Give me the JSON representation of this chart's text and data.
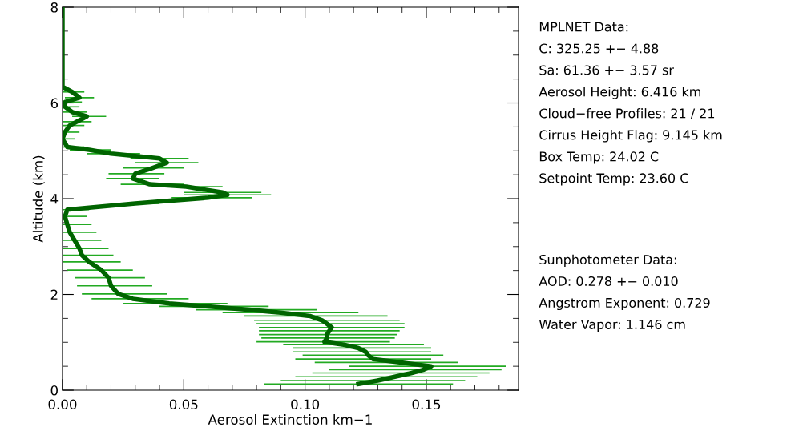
{
  "chart_data": {
    "type": "line",
    "xlabel": "Aerosol Extinction km−1",
    "ylabel": "Altitude (km)",
    "xlim": [
      0,
      0.188
    ],
    "xticks": [
      {
        "value": 0,
        "label": "0.00"
      },
      {
        "value": 0.05,
        "label": "0.05"
      },
      {
        "value": 0.1,
        "label": "0.10"
      },
      {
        "value": 0.15,
        "label": "0.15"
      }
    ],
    "ylim": [
      0,
      8
    ],
    "yticks": [
      0,
      2,
      4,
      6,
      8
    ],
    "grid": false,
    "legend": false,
    "marker": "none",
    "line_style": "solid",
    "series": [
      {
        "color": "#006400",
        "x": [
          0.122,
          0.13,
          0.137,
          0.144,
          0.149,
          0.152,
          0.139,
          0.128,
          0.126,
          0.125,
          0.122,
          0.116,
          0.108,
          0.109,
          0.109,
          0.11,
          0.111,
          0.109,
          0.107,
          0.102,
          0.09,
          0.077,
          0.06,
          0.044,
          0.029,
          0.023,
          0.02,
          0.019,
          0.016,
          0.011,
          0.008,
          0.007,
          0.005,
          0.003,
          0.002,
          0.001,
          0.002,
          0.03,
          0.06,
          0.068,
          0.066,
          0.051,
          0.036,
          0.029,
          0.03,
          0.037,
          0.043,
          0.04,
          0.02,
          0.011,
          0.002,
          0.0,
          0.001,
          0.003,
          0.006,
          0.01,
          0.004,
          0.001,
          0.001,
          0.007,
          0.004,
          0.0,
          0.0,
          0.0
        ],
        "values": [
          0.13,
          0.2,
          0.28,
          0.36,
          0.43,
          0.5,
          0.58,
          0.65,
          0.73,
          0.8,
          0.88,
          0.95,
          1.01,
          1.09,
          1.16,
          1.24,
          1.31,
          1.39,
          1.46,
          1.55,
          1.62,
          1.68,
          1.75,
          1.81,
          1.91,
          2.01,
          2.18,
          2.35,
          2.51,
          2.68,
          2.82,
          2.96,
          3.13,
          3.3,
          3.46,
          3.63,
          3.77,
          3.9,
          4.02,
          4.08,
          4.13,
          4.25,
          4.3,
          4.42,
          4.52,
          4.64,
          4.75,
          4.84,
          4.94,
          5.02,
          5.08,
          5.25,
          5.39,
          5.53,
          5.61,
          5.72,
          5.81,
          5.92,
          6.02,
          6.11,
          6.23,
          6.34,
          6.42,
          8.0
        ],
        "xerrors": [
          [
            0.083,
            0.161
          ],
          [
            0.09,
            0.166
          ],
          [
            0.096,
            0.171
          ],
          [
            0.103,
            0.176
          ],
          [
            0.11,
            0.181
          ],
          [
            0.118,
            0.183
          ],
          [
            0.104,
            0.163
          ],
          [
            0.096,
            0.152
          ],
          [
            0.099,
            0.157
          ],
          [
            0.095,
            0.152
          ],
          [
            0.095,
            0.152
          ],
          [
            0.091,
            0.149
          ],
          [
            0.08,
            0.135
          ],
          [
            0.082,
            0.137
          ],
          [
            0.081,
            0.138
          ],
          [
            0.081,
            0.139
          ],
          [
            0.081,
            0.141
          ],
          [
            0.08,
            0.141
          ],
          [
            0.079,
            0.139
          ],
          [
            0.075,
            0.134
          ],
          [
            0.066,
            0.122
          ],
          [
            0.055,
            0.105
          ],
          [
            0.04,
            0.085
          ],
          [
            0.025,
            0.068
          ],
          [
            0.012,
            0.052
          ],
          [
            0.008,
            0.043
          ],
          [
            0.006,
            0.037
          ],
          [
            0.005,
            0.034
          ],
          [
            0.002,
            0.029
          ],
          [
            0.0,
            0.024
          ],
          [
            0.0,
            0.021
          ],
          [
            0.0,
            0.019
          ],
          [
            0.0,
            0.016
          ],
          [
            0.0,
            0.014
          ],
          [
            0.0,
            0.012
          ],
          [
            0.0,
            0.01
          ],
          [
            0.0,
            0.011
          ],
          [
            0.02,
            0.04
          ],
          [
            0.045,
            0.078
          ],
          [
            0.05,
            0.086
          ],
          [
            0.05,
            0.082
          ],
          [
            0.038,
            0.066
          ],
          [
            0.024,
            0.05
          ],
          [
            0.018,
            0.04
          ],
          [
            0.019,
            0.042
          ],
          [
            0.025,
            0.05
          ],
          [
            0.03,
            0.056
          ],
          [
            0.028,
            0.052
          ],
          [
            0.01,
            0.032
          ],
          [
            0.003,
            0.02
          ],
          [
            0.0,
            0.009
          ],
          [
            0.0,
            0.005
          ],
          [
            0.0,
            0.007
          ],
          [
            0.0,
            0.009
          ],
          [
            0.0,
            0.012
          ],
          [
            0.004,
            0.018
          ],
          [
            0.0,
            0.01
          ],
          [
            0.0,
            0.007
          ],
          [
            0.0,
            0.008
          ],
          [
            0.001,
            0.013
          ],
          [
            0.0,
            0.009
          ],
          null,
          null,
          null
        ]
      }
    ],
    "annotations": [
      "MPLNET Data:\nC: 325.25 +− 4.88\nSa: 61.36 +− 3.57 sr\nAerosol Height: 6.416 km\nCloud−free Profiles: 21 / 21\nCirrus Height Flag: 9.145 km\nBox Temp: 24.02 C\nSetpoint Temp: 23.60 C",
      "Sunphotometer Data:\nAOD: 0.278 +− 0.010\nAngstrom Exponent: 0.729\nWater Vapor: 1.146 cm"
    ]
  }
}
